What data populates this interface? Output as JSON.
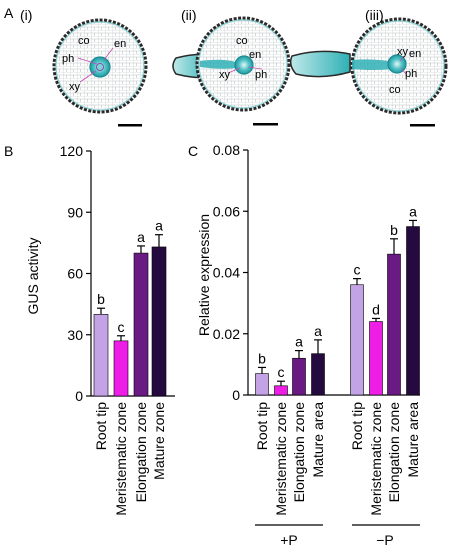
{
  "panel_letters": {
    "a": "A",
    "b": "B",
    "c": "C"
  },
  "micrographs": [
    {
      "roman": "(i)",
      "labels": {
        "co": "co",
        "en": "en",
        "ph": "ph",
        "xy": "xy"
      }
    },
    {
      "roman": "(ii)",
      "labels": {
        "co": "co",
        "en": "en",
        "ph": "ph",
        "xy": "xy"
      }
    },
    {
      "roman": "(iii)",
      "labels": {
        "co": "co",
        "en": "en",
        "ph": "ph",
        "xy": "xy"
      }
    }
  ],
  "colors": {
    "root_tip": "#c3a3e6",
    "meristematic_zone": "#ee1ee6",
    "elongation_zone": "#6a1a83",
    "mature": "#250a3f",
    "tissue_stain": "#2fb0b5",
    "cell_wall": "#9aa0a3"
  },
  "chart_data": [
    {
      "type": "bar",
      "panel": "B",
      "ylabel": "GUS activity",
      "ylim": [
        0,
        120
      ],
      "yticks": [
        0,
        30,
        60,
        90,
        120
      ],
      "categories": [
        "Root tip",
        "Meristematic zone",
        "Elongation zone",
        "Mature zone"
      ],
      "values": [
        40,
        27,
        70,
        73
      ],
      "errors": [
        3,
        2.5,
        3.5,
        6
      ],
      "letters": [
        "b",
        "c",
        "a",
        "a"
      ],
      "bar_colors": [
        "#c3a3e6",
        "#ee1ee6",
        "#6a1a83",
        "#250a3f"
      ]
    },
    {
      "type": "bar",
      "panel": "C",
      "ylabel": "Relative expression",
      "ylim": [
        0,
        0.08
      ],
      "yticks": [
        "0",
        "0.02",
        "0.04",
        "0.06",
        "0.08"
      ],
      "categories": [
        "Root tip",
        "Meristematic zone",
        "Elongation zone",
        "Mature area"
      ],
      "groups": [
        {
          "name": "+P",
          "values": [
            0.007,
            0.003,
            0.012,
            0.0135
          ],
          "errors": [
            0.002,
            0.0015,
            0.0025,
            0.0045
          ],
          "letters": [
            "b",
            "c",
            "a",
            "a"
          ]
        },
        {
          "name": "−P",
          "values": [
            0.036,
            0.024,
            0.046,
            0.055
          ],
          "errors": [
            0.002,
            0.001,
            0.005,
            0.002
          ],
          "letters": [
            "c",
            "d",
            "b",
            "a"
          ]
        }
      ],
      "bar_colors": [
        "#c3a3e6",
        "#ee1ee6",
        "#6a1a83",
        "#250a3f"
      ]
    }
  ]
}
